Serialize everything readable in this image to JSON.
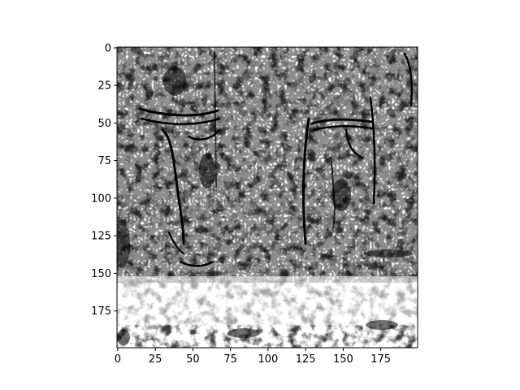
{
  "chart_data": {
    "type": "heatmap",
    "title": "",
    "xlabel": "",
    "ylabel": "",
    "colormap": "gray_r",
    "image_shape": [
      200,
      200
    ],
    "xlim": [
      -0.5,
      199.5
    ],
    "ylim": [
      199.5,
      -0.5
    ],
    "x_ticks": [
      0,
      25,
      50,
      75,
      100,
      125,
      150,
      175
    ],
    "y_ticks": [
      0,
      25,
      50,
      75,
      100,
      125,
      150,
      175
    ],
    "x_tick_labels": [
      "0",
      "25",
      "50",
      "75",
      "100",
      "125",
      "150",
      "175"
    ],
    "y_tick_labels": [
      "0",
      "25",
      "50",
      "75",
      "100",
      "125",
      "150",
      "175"
    ],
    "grid": false,
    "description_of_content": "edge-magnitude map of a textured scene with two vertical cylindrical objects"
  },
  "colors": {
    "background": "#ffffff",
    "axis": "#000000",
    "ink": "#000000"
  }
}
